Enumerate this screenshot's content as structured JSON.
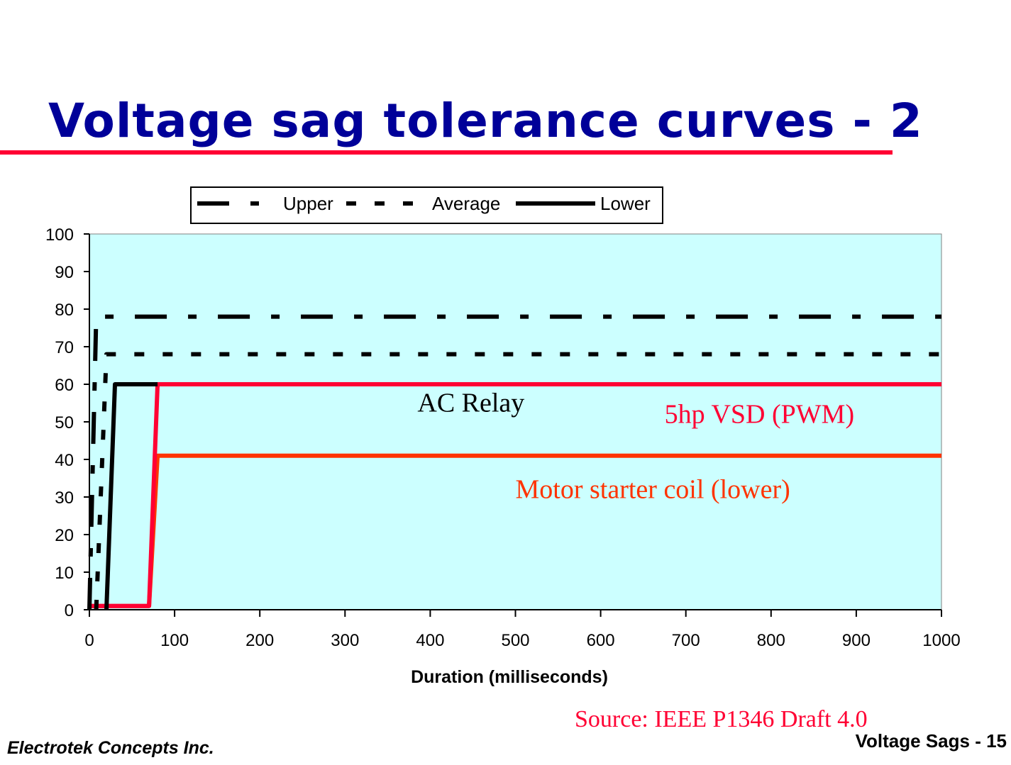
{
  "slide": {
    "title": "Voltage sag tolerance curves - 2",
    "source": "Source: IEEE P1346 Draft 4.0",
    "company": "Electrotek Concepts Inc.",
    "slide_label": "Voltage Sags - 15"
  },
  "chart_data": {
    "type": "line",
    "title": "",
    "xlabel": "Duration (milliseconds)",
    "ylabel": "",
    "xlim": [
      0,
      1000
    ],
    "ylim": [
      0,
      100
    ],
    "xticks": [
      0,
      100,
      200,
      300,
      400,
      500,
      600,
      700,
      800,
      900,
      1000
    ],
    "yticks": [
      0,
      10,
      20,
      30,
      40,
      50,
      60,
      70,
      80,
      90,
      100
    ],
    "grid": false,
    "plot_background": "#CCFFFF",
    "legend": {
      "placement": "top",
      "entries": [
        "Upper",
        "Average",
        "Lower"
      ]
    },
    "series": [
      {
        "name": "Upper",
        "color": "#000000",
        "style": "dash-dot",
        "x": [
          0,
          8,
          1000
        ],
        "y": [
          0,
          78,
          78
        ]
      },
      {
        "name": "Average",
        "color": "#000000",
        "style": "dotted",
        "x": [
          8,
          20,
          1000
        ],
        "y": [
          0,
          68,
          68
        ]
      },
      {
        "name": "Lower",
        "color": "#000000",
        "style": "solid",
        "x": [
          20,
          30,
          80
        ],
        "y": [
          0,
          60,
          60
        ]
      },
      {
        "color": "#FF0033",
        "style": "solid",
        "x": [
          0,
          70,
          80,
          1000
        ],
        "y": [
          1,
          1,
          60,
          60
        ]
      },
      {
        "color": "#FF3300",
        "style": "solid",
        "x": [
          0,
          70,
          80,
          80,
          1000
        ],
        "y": [
          1,
          1,
          41,
          41,
          41
        ]
      }
    ],
    "annotations": [
      {
        "text": "AC Relay",
        "color": "#000000",
        "x": 385,
        "y": 55
      },
      {
        "text": "5hp VSD (PWM)",
        "color": "#FF0033",
        "x": 675,
        "y": 52
      },
      {
        "text": "Motor starter coil (lower)",
        "color": "#FF3300",
        "x": 500,
        "y": 32
      }
    ]
  }
}
